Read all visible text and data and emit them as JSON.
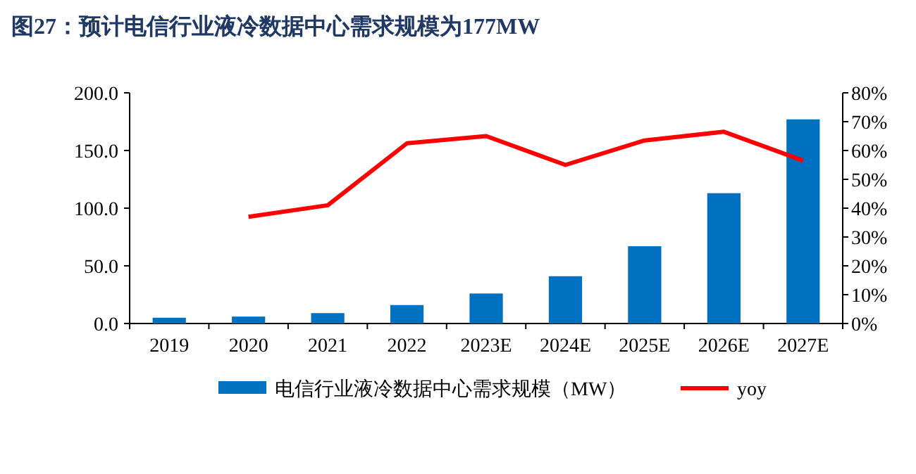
{
  "chart_data": {
    "type": "bar",
    "title": "图27：预计电信行业液冷数据中心需求规模为177MW",
    "categories": [
      "2019",
      "2020",
      "2021",
      "2022",
      "2023E",
      "2024E",
      "2025E",
      "2026E",
      "2027E"
    ],
    "series": [
      {
        "name": "电信行业液冷数据中心需求规模（MW）",
        "color": "#0070c0",
        "values": [
          5,
          6,
          9,
          16,
          26,
          41,
          67,
          113,
          177
        ]
      },
      {
        "name": "yoy",
        "type": "line",
        "axis": "y2",
        "color": "#ff0000",
        "values": [
          null,
          37,
          41,
          62.5,
          65,
          55,
          63.5,
          66.5,
          56.5
        ]
      }
    ],
    "ylim": [
      0,
      200
    ],
    "yticks": [
      {
        "value": 0,
        "label": "0.0"
      },
      {
        "value": 50,
        "label": "50.0"
      },
      {
        "value": 100,
        "label": "100.0"
      },
      {
        "value": 150,
        "label": "150.0"
      },
      {
        "value": 200,
        "label": "200.0"
      }
    ],
    "y2lim": [
      0,
      80
    ],
    "y2ticks": [
      {
        "value": 0,
        "label": "0%"
      },
      {
        "value": 10,
        "label": "10%"
      },
      {
        "value": 20,
        "label": "20%"
      },
      {
        "value": 30,
        "label": "30%"
      },
      {
        "value": 40,
        "label": "40%"
      },
      {
        "value": 50,
        "label": "50%"
      },
      {
        "value": 60,
        "label": "60%"
      },
      {
        "value": 70,
        "label": "70%"
      },
      {
        "value": 80,
        "label": "80%"
      }
    ],
    "legend": "bottom",
    "grid": false,
    "marker": "none",
    "line_style": "solid"
  }
}
